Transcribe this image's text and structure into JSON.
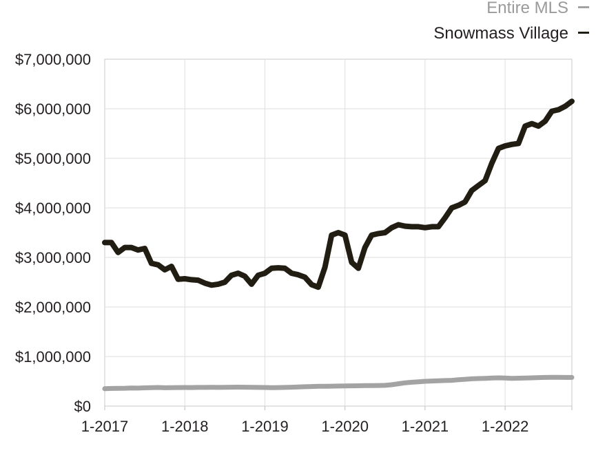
{
  "chart_data": {
    "type": "line",
    "y_tick_labels": [
      "$7,000,000",
      "$6,000,000",
      "$5,000,000",
      "$4,000,000",
      "$3,000,000",
      "$2,000,000",
      "$1,000,000",
      "$0"
    ],
    "x_tick_labels": [
      "1-2017",
      "1-2018",
      "1-2019",
      "1-2020",
      "1-2021",
      "1-2022"
    ],
    "ylim": [
      0,
      7000000
    ],
    "xlim": [
      0,
      70
    ],
    "grid": true,
    "legend_position": "top-right",
    "series": [
      {
        "name": "Entire MLS",
        "color": "#a3a3a3",
        "values": [
          350000,
          355000,
          358000,
          360000,
          365000,
          362000,
          368000,
          372000,
          375000,
          370000,
          372000,
          374000,
          375000,
          374000,
          376000,
          377000,
          378000,
          376000,
          378000,
          380000,
          382000,
          380000,
          378000,
          377000,
          375000,
          372000,
          374000,
          376000,
          380000,
          385000,
          390000,
          395000,
          398000,
          400000,
          402000,
          404000,
          405000,
          408000,
          410000,
          412000,
          413000,
          415000,
          418000,
          430000,
          450000,
          470000,
          480000,
          490000,
          500000,
          505000,
          510000,
          515000,
          520000,
          530000,
          540000,
          550000,
          555000,
          560000,
          565000,
          570000,
          565000,
          560000,
          562000,
          565000,
          570000,
          575000,
          578000,
          580000,
          580000,
          578000,
          578000
        ]
      },
      {
        "name": "Snowmass Village",
        "color": "#221d13",
        "values": [
          3300000,
          3300000,
          3100000,
          3200000,
          3200000,
          3150000,
          3180000,
          2880000,
          2850000,
          2750000,
          2820000,
          2560000,
          2570000,
          2550000,
          2540000,
          2480000,
          2440000,
          2460000,
          2500000,
          2640000,
          2680000,
          2620000,
          2460000,
          2640000,
          2680000,
          2780000,
          2790000,
          2780000,
          2680000,
          2650000,
          2600000,
          2450000,
          2400000,
          2800000,
          3450000,
          3500000,
          3450000,
          2900000,
          2780000,
          3200000,
          3450000,
          3480000,
          3500000,
          3600000,
          3660000,
          3630000,
          3620000,
          3620000,
          3600000,
          3620000,
          3620000,
          3800000,
          4000000,
          4050000,
          4120000,
          4350000,
          4450000,
          4550000,
          4900000,
          5200000,
          5250000,
          5280000,
          5300000,
          5650000,
          5700000,
          5650000,
          5750000,
          5950000,
          5980000,
          6050000,
          6150000
        ]
      }
    ]
  }
}
